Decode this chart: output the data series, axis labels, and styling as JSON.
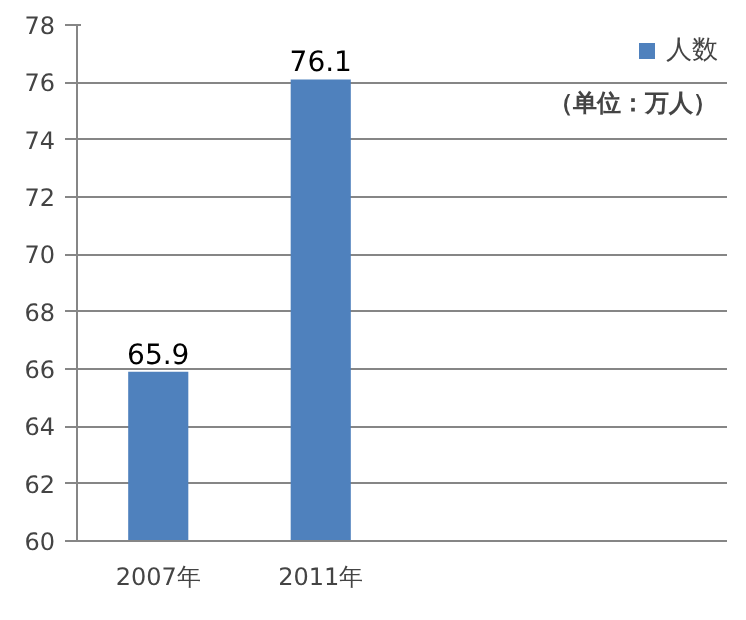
{
  "chart_data": {
    "type": "bar",
    "categories": [
      "2007年",
      "2011年",
      null,
      null
    ],
    "series": [
      {
        "name": "人数",
        "color": "#4f81bd",
        "values": [
          65.9,
          76.1,
          null,
          null
        ]
      }
    ],
    "ylim": [
      60,
      78
    ],
    "yticks": [
      60,
      62,
      64,
      66,
      68,
      70,
      72,
      74,
      76,
      78
    ],
    "grid": "y",
    "legend": "top right",
    "data_labels": true,
    "annotations": [
      "（单位：万人）"
    ]
  }
}
